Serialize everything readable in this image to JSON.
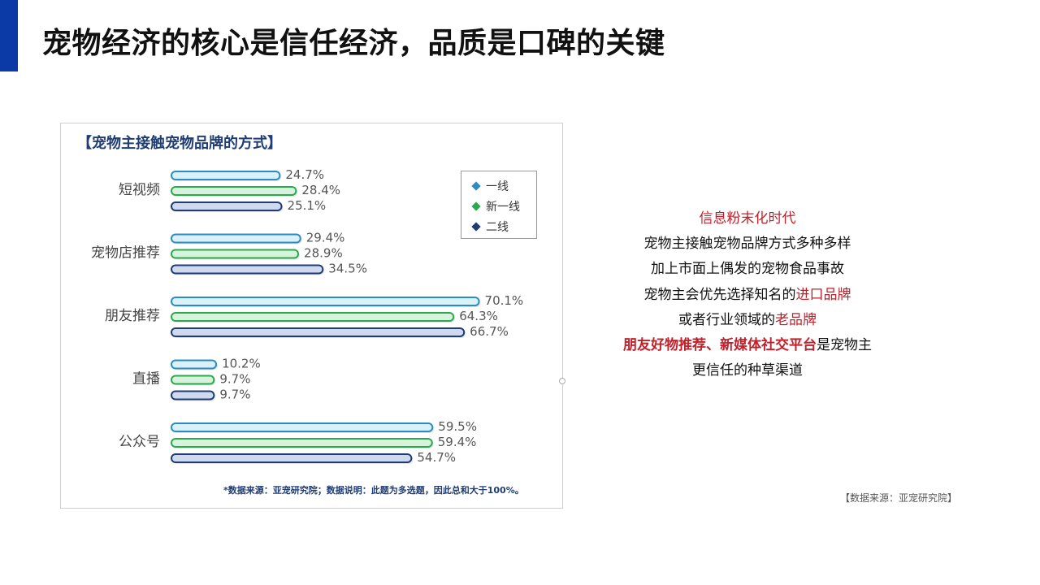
{
  "slide": {
    "title": "宠物经济的核心是信任经济，品质是口碑的关键",
    "accent_color": "#0b3aa6"
  },
  "chart_data": {
    "type": "bar",
    "orientation": "horizontal",
    "title": "【宠物主接触宠物品牌的方式】",
    "categories": [
      "短视频",
      "宠物店推荐",
      "朋友推荐",
      "直播",
      "公众号"
    ],
    "series": [
      {
        "name": "一线",
        "color": "#2e8bc0",
        "fill": "#d9f1fb",
        "values": [
          24.7,
          29.4,
          70.1,
          10.2,
          59.5
        ]
      },
      {
        "name": "新一线",
        "color": "#2ea84e",
        "fill": "#d6f3dc",
        "values": [
          28.4,
          28.9,
          64.3,
          9.7,
          59.4
        ]
      },
      {
        "name": "二线",
        "color": "#1f3d73",
        "fill": "#cfd9ef",
        "values": [
          25.1,
          34.5,
          66.7,
          9.7,
          54.7
        ]
      }
    ],
    "value_suffix": "%",
    "xlim": [
      0,
      75
    ],
    "grid": false,
    "legend_position": "top-right",
    "note": "*数据来源：亚宠研究院；数据说明：此题为多选题，因此总和大于100%。"
  },
  "text_panel": {
    "l1": "信息粉末化时代",
    "l2": "宠物主接触宠物品牌方式多种多样",
    "l3": "加上市面上偶发的宠物食品事故",
    "l4a": "宠物主会优先选择知名的",
    "l4b": "进口品牌",
    "l5a": "或者行业领域的",
    "l5b": "老品牌",
    "l6a": "朋友好物推荐、新媒体社交平台",
    "l6b": "是宠物主",
    "l7": "更信任的种草渠道"
  },
  "source": "【数据来源：亚宠研究院】"
}
